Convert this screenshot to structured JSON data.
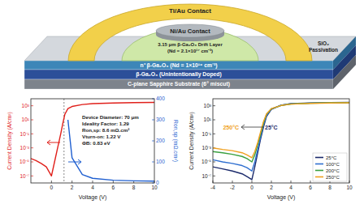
{
  "diagram": {
    "ti_au_contact": "Ti/Au Contact",
    "ni_au_contact": "Ni/Au Contact",
    "drift_layer": [
      "3.15 μm β-Ga₂O₃ Drift Layer",
      "(Nd = 2.1×10¹⁷ cm⁻³)"
    ],
    "passivation": [
      "SiO₂",
      "Passivation"
    ],
    "layers": [
      "n⁺ β-Ga₂O₃ (Nd = 1×10¹⁹ cm⁻³)",
      "β-Ga₂O₃ (Unintentionally Doped)",
      "C-plane Sapphire Substrate (6° miscut)"
    ]
  },
  "chart_data": [
    {
      "type": "line",
      "log": "y",
      "xlabel": "Voltage (V)",
      "ylabel": "Current Density (A/cm²)",
      "y2label": "Ron,sp (mΩ.cm²)",
      "x": [
        -2,
        -1.5,
        -1,
        -0.5,
        0,
        0.3,
        0.6,
        0.9,
        1.1,
        1.3,
        1.6,
        2,
        3,
        4,
        6,
        8,
        10
      ],
      "xlim": [
        -2,
        10
      ],
      "xticks": [
        0,
        2,
        4,
        6,
        8,
        10
      ],
      "ylim": [
        1e-08,
        10000
      ],
      "yticks": [
        {
          "value": 1e-07,
          "label": "10⁻⁷"
        },
        {
          "value": 1e-05,
          "label": "10⁻⁵"
        },
        {
          "value": 0.001,
          "label": "10⁻³"
        },
        {
          "value": 0.1,
          "label": "10⁻¹"
        },
        {
          "value": 10,
          "label": "10¹"
        },
        {
          "value": 1000,
          "label": "10³"
        }
      ],
      "y2lim": [
        0,
        400
      ],
      "y2ticks": [
        0,
        100,
        200,
        300,
        400
      ],
      "series": [
        {
          "color": "#e0201b",
          "values": [
            3e-05,
            1.5e-05,
            6e-06,
            2e-06,
            1e-07,
            1e-05,
            0.001,
            0.1,
            3,
            60,
            400,
            800,
            1500,
            2000,
            2500,
            2800,
            3000
          ]
        },
        {
          "color": "#1f5fd0",
          "axis": "y2",
          "values": [
            null,
            null,
            null,
            null,
            null,
            null,
            null,
            null,
            null,
            null,
            300,
            120,
            40,
            22,
            13,
            10,
            8.6
          ]
        }
      ],
      "vline": 1.22,
      "annotation_box": [
        "Device Diameter: 70 μm",
        "Ideality Factor: 1.29",
        "Ron,sp: 8.6 mΩ.cm²",
        "Vturn-on: 1.22 V",
        "ΦB: 0.83 eV"
      ]
    },
    {
      "type": "line",
      "log": "y",
      "xlabel": "Voltage (V)",
      "ylabel": "Current Density (A/cm²)",
      "legend": "lower right",
      "x": [
        -4,
        -3,
        -2,
        -1,
        -0.5,
        0,
        0.3,
        0.6,
        0.9,
        1.2,
        1.5,
        2,
        3,
        4,
        6,
        8,
        10
      ],
      "xlim": [
        -4,
        10
      ],
      "xticks": [
        -4,
        -2,
        0,
        2,
        4,
        6,
        8,
        10
      ],
      "ylim": [
        1e-08,
        10000
      ],
      "yticks": [
        {
          "value": 1e-07,
          "label": "10⁻⁷"
        },
        {
          "value": 1e-05,
          "label": "10⁻⁵"
        },
        {
          "value": 0.001,
          "label": "10⁻³"
        },
        {
          "value": 0.1,
          "label": "10⁻¹"
        },
        {
          "value": 10,
          "label": "10¹"
        },
        {
          "value": 1000,
          "label": "10³"
        }
      ],
      "series": [
        {
          "name": "25°C",
          "color": "#1b2a6b",
          "values": [
            2e-06,
            1e-06,
            5e-07,
            2e-07,
            8e-08,
            3e-08,
            2e-06,
            0.0002,
            0.02,
            1,
            30,
            300,
            1200,
            2000,
            2500,
            2800,
            3000
          ]
        },
        {
          "name": "100°C",
          "color": "#2f6fd0",
          "values": [
            2e-05,
            1e-05,
            6e-06,
            3e-06,
            1.5e-06,
            5e-07,
            1e-05,
            0.0006,
            0.04,
            2,
            40,
            350,
            1200,
            1900,
            2400,
            2700,
            2900
          ]
        },
        {
          "name": "200°C",
          "color": "#3aa040",
          "values": [
            0.0003,
            0.0002,
            0.00012,
            6e-05,
            3e-05,
            1e-05,
            0.0001,
            0.003,
            0.1,
            4,
            60,
            380,
            1100,
            1800,
            2300,
            2600,
            2800
          ]
        },
        {
          "name": "250°C",
          "color": "#f0a020",
          "values": [
            0.001,
            0.0006,
            0.0004,
            0.0002,
            0.0001,
            4e-05,
            0.0003,
            0.006,
            0.2,
            6,
            70,
            400,
            1100,
            1700,
            2200,
            2500,
            2700
          ]
        }
      ],
      "annotations": [
        "250°C",
        "25°C"
      ]
    }
  ]
}
